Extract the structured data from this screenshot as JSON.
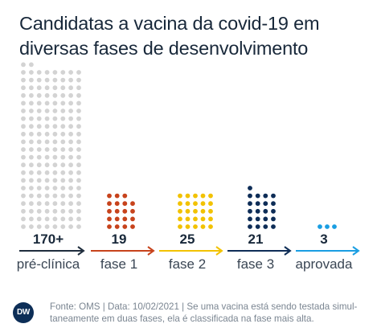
{
  "title_lines": [
    "Candidatas a vacina da covid-19 em",
    "diversas fases de desenvolvimento"
  ],
  "chart_data": {
    "type": "dot-matrix",
    "title": "Candidatas a vacina da covid-19 em diversas fases de desenvolvimento",
    "categories": [
      "pré-clínica",
      "fase 1",
      "fase 2",
      "fase 3",
      "aprovada"
    ],
    "values": [
      170,
      19,
      25,
      21,
      3
    ],
    "value_labels": [
      "170+",
      "19",
      "25",
      "21",
      "3"
    ],
    "colors": [
      "#d3d3d3",
      "#c7431c",
      "#f2c200",
      "#0e2d57",
      "#1a9ee2"
    ],
    "arrow_colors": [
      "#1f2d3d",
      "#c7431c",
      "#f2c200",
      "#0e2d57",
      "#1a9ee2"
    ]
  },
  "footer": {
    "logo_text": "DW",
    "source_lines": [
      "Fonte: OMS | Data: 10/02/2021 | Se uma vacina está sendo testada simul-",
      "taneamente em duas fases, ela é classificada na fase mais alta."
    ]
  }
}
